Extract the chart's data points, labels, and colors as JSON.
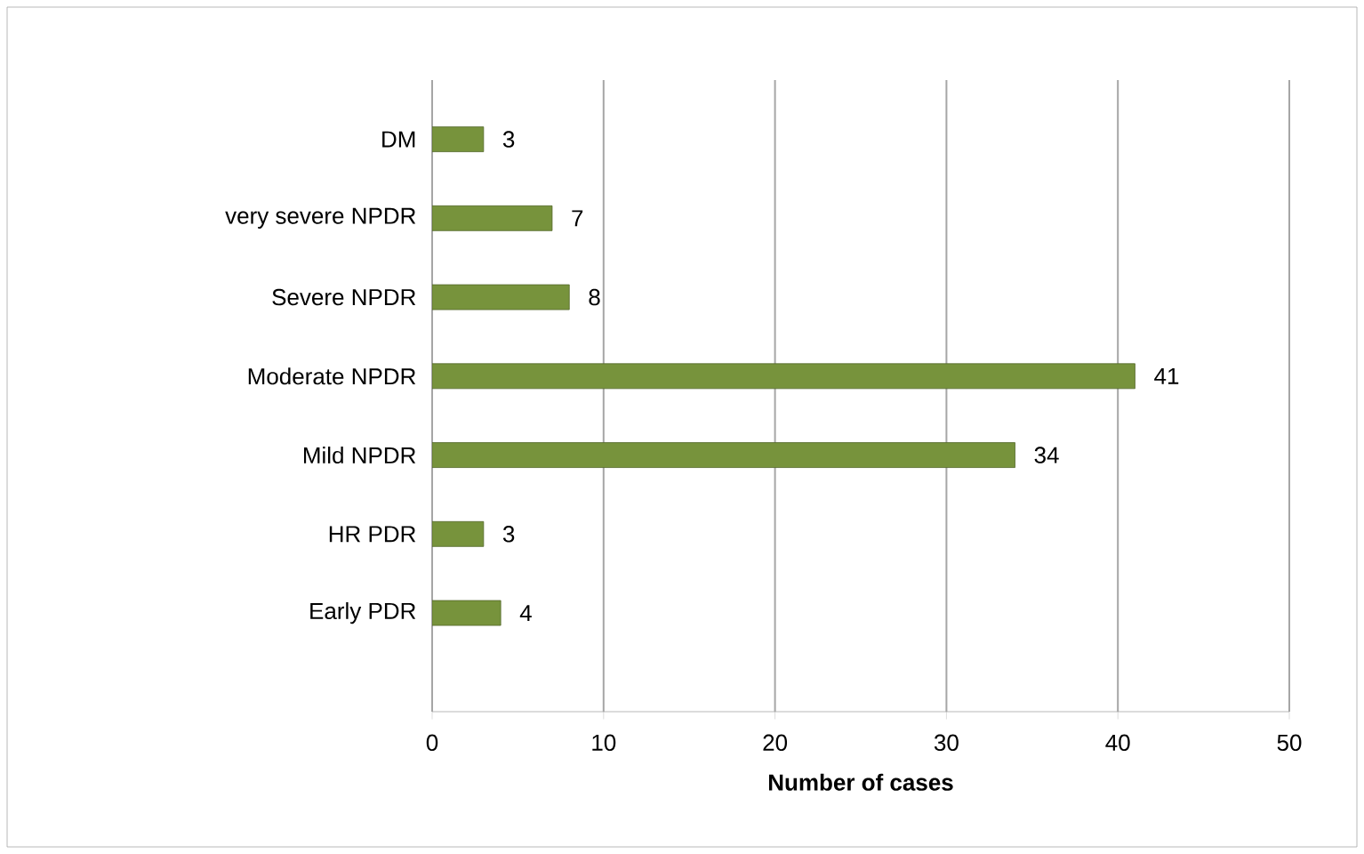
{
  "chart_data": {
    "type": "bar",
    "orientation": "horizontal",
    "xlabel": "Number of cases",
    "categories": [
      "DM",
      "very severe NPDR",
      "Severe NPDR",
      "Moderate NPDR",
      "Mild NPDR",
      "HR PDR",
      "Early PDR"
    ],
    "values": [
      3,
      7,
      8,
      41,
      34,
      3,
      4
    ],
    "color": "#77933c",
    "xlim": [
      0,
      50
    ],
    "xticks": [
      0,
      10,
      20,
      30,
      40,
      50
    ],
    "grid": "x",
    "data_labels": true
  }
}
